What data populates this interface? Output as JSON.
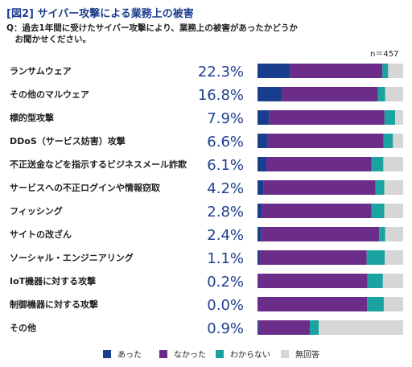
{
  "title": "[図2] サイバー攻撃による業務上の被害",
  "question_line1": "Q：過去1年間に受けたサイバー攻撃により、業務上の被害があったかどうか",
  "question_line2": "　お聞かせください。",
  "n_label": "n＝457",
  "colors": {
    "あった": "#1a3e8e",
    "なかった": "#6b2c8a",
    "わからない": "#1aa3a0",
    "無回答": "#d6d6d6",
    "label": "#1f3f8f"
  },
  "chart_data": {
    "type": "bar",
    "orientation": "horizontal",
    "stacked": true,
    "normalized": true,
    "xlim": [
      0,
      100
    ],
    "grid": false,
    "legend_position": "bottom",
    "categories": [
      "ランサムウェア",
      "その他のマルウェア",
      "標的型攻撃",
      "DDoS（サービス妨害）攻撃",
      "不正送金などを指示するビジネスメール詐欺",
      "サービスへの不正ログインや情報窃取",
      "フィッシング",
      "サイトの改ざん",
      "ソーシャル・エンジニアリング",
      "IoT機器に対する攻撃",
      "制御機器に対する攻撃",
      "その他"
    ],
    "value_labels": [
      "22.3%",
      "16.8%",
      "7.9%",
      "6.6%",
      "6.1%",
      "4.2%",
      "2.8%",
      "2.4%",
      "1.1%",
      "0.2%",
      "0.0%",
      "0.9%"
    ],
    "series": [
      {
        "name": "あった",
        "values": [
          22.3,
          16.8,
          7.9,
          6.6,
          6.1,
          4.2,
          2.8,
          2.4,
          1.1,
          0.2,
          0.0,
          0.9
        ]
      },
      {
        "name": "なかった",
        "values": [
          63.5,
          65.9,
          79.3,
          79.9,
          72.2,
          76.8,
          75.5,
          81.2,
          73.9,
          75.3,
          75.3,
          35.0
        ]
      },
      {
        "name": "わからない",
        "values": [
          3.9,
          5.0,
          7.3,
          6.5,
          8.1,
          6.1,
          8.8,
          4.1,
          12.4,
          10.6,
          11.4,
          6.1
        ]
      },
      {
        "name": "無回答",
        "values": [
          10.3,
          12.3,
          5.5,
          7.0,
          13.6,
          12.9,
          12.9,
          12.3,
          12.6,
          13.9,
          13.3,
          58.0
        ]
      }
    ]
  }
}
